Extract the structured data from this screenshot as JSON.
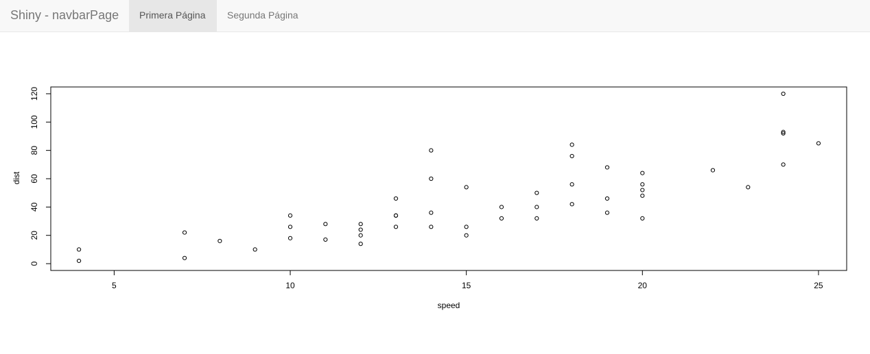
{
  "navbar": {
    "brand": "Shiny - navbarPage",
    "tabs": [
      {
        "label": "Primera Página",
        "active": true
      },
      {
        "label": "Segunda Página",
        "active": false
      }
    ]
  },
  "colors": {
    "navbar_bg": "#f8f8f8",
    "active_tab_bg": "#e7e7e7",
    "nav_text": "#777777"
  },
  "chart_data": {
    "type": "scatter",
    "xlabel": "speed",
    "ylabel": "dist",
    "xlim": [
      3.2,
      25.8
    ],
    "ylim": [
      -4.8,
      124.8
    ],
    "x_ticks": [
      5,
      10,
      15,
      20,
      25
    ],
    "y_ticks": [
      0,
      20,
      40,
      60,
      80,
      100,
      120
    ],
    "grid": false,
    "points": {
      "x": [
        4,
        4,
        7,
        7,
        8,
        9,
        10,
        10,
        10,
        11,
        11,
        12,
        12,
        12,
        12,
        13,
        13,
        13,
        13,
        14,
        14,
        14,
        14,
        15,
        15,
        15,
        16,
        16,
        17,
        17,
        17,
        18,
        18,
        18,
        18,
        19,
        19,
        19,
        20,
        20,
        20,
        20,
        20,
        22,
        23,
        24,
        24,
        24,
        24,
        25
      ],
      "y": [
        2,
        10,
        4,
        22,
        16,
        10,
        18,
        26,
        34,
        17,
        28,
        14,
        20,
        24,
        28,
        26,
        34,
        34,
        46,
        26,
        36,
        60,
        80,
        20,
        26,
        54,
        32,
        40,
        32,
        40,
        50,
        42,
        56,
        76,
        84,
        36,
        46,
        68,
        32,
        48,
        52,
        56,
        64,
        66,
        54,
        70,
        92,
        93,
        120,
        85
      ]
    }
  }
}
